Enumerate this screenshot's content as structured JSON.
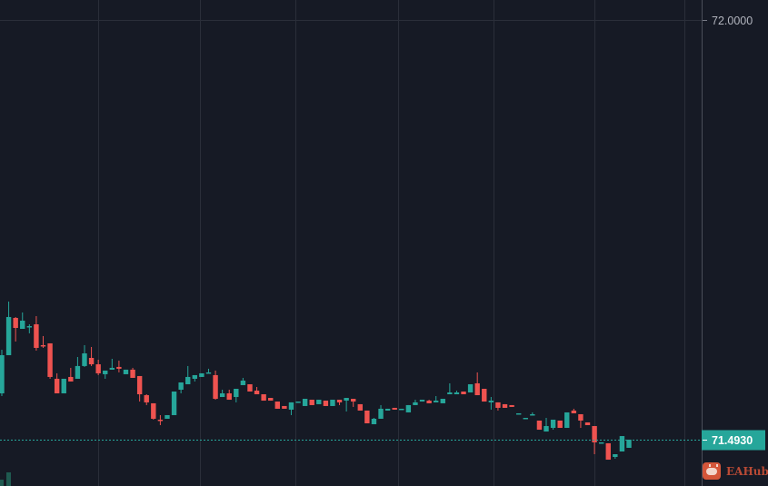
{
  "chart_data": {
    "type": "candlestick",
    "title": "",
    "xlabel": "",
    "ylabel": "",
    "ylim": [
      71.437,
      72.024
    ],
    "y_ticks": [
      "72.0000"
    ],
    "y_tick_values": [
      72.0
    ],
    "last_price": 71.493,
    "last_price_label": "71.4930",
    "grid": true,
    "colors": {
      "up": "#26a69a",
      "down": "#ef5350",
      "background": "#161a25",
      "grid": "#2a2e39",
      "last_price_line": "#26a69a"
    },
    "ohlc": [
      [
        71.5489,
        71.6016,
        71.5456,
        71.595
      ],
      [
        71.595,
        71.6598,
        71.595,
        71.6411
      ],
      [
        71.64,
        71.6411,
        71.6115,
        71.6279
      ],
      [
        71.6268,
        71.6466,
        71.6268,
        71.6367
      ],
      [
        71.629,
        71.6323,
        71.6214,
        71.6301
      ],
      [
        71.6323,
        71.6422,
        71.6005,
        71.6038
      ],
      [
        71.6071,
        71.6181,
        71.6038,
        71.606
      ],
      [
        71.6093,
        71.6093,
        71.5665,
        71.5687
      ],
      [
        71.5665,
        71.5731,
        71.5489,
        71.5489
      ],
      [
        71.5489,
        71.5665,
        71.5489,
        71.5665
      ],
      [
        71.5687,
        71.5797,
        71.5632,
        71.5632
      ],
      [
        71.5665,
        71.5928,
        71.5665,
        71.5819
      ],
      [
        71.5819,
        71.6071,
        71.5808,
        71.5972
      ],
      [
        71.5917,
        71.6049,
        71.5819,
        71.584
      ],
      [
        71.584,
        71.5895,
        71.5709,
        71.5731
      ],
      [
        71.572,
        71.5764,
        71.5665,
        71.5764
      ],
      [
        71.5775,
        71.5906,
        71.5775,
        71.5797
      ],
      [
        71.5808,
        71.5884,
        71.5742,
        71.5786
      ],
      [
        71.572,
        71.5775,
        71.572,
        71.5775
      ],
      [
        71.5775,
        71.5797,
        71.5676,
        71.5676
      ],
      [
        71.5698,
        71.5698,
        71.539,
        71.5478
      ],
      [
        71.5467,
        71.5478,
        71.5347,
        71.538
      ],
      [
        71.5369,
        71.5369,
        71.5171,
        71.5182
      ],
      [
        71.5171,
        71.5226,
        71.5105,
        71.516
      ],
      [
        71.5182,
        71.5226,
        71.5182,
        71.5226
      ],
      [
        71.5226,
        71.5511,
        71.5226,
        71.5511
      ],
      [
        71.5533,
        71.5621,
        71.5489,
        71.5621
      ],
      [
        71.5599,
        71.5819,
        71.5599,
        71.5687
      ],
      [
        71.5665,
        71.5709,
        71.5632,
        71.5709
      ],
      [
        71.5687,
        71.5731,
        71.5687,
        71.5731
      ],
      [
        71.5731,
        71.5786,
        71.5731,
        71.5742
      ],
      [
        71.5709,
        71.5764,
        71.5412,
        71.5423
      ],
      [
        71.5445,
        71.5533,
        71.5445,
        71.5489
      ],
      [
        71.5489,
        71.5533,
        71.5412,
        71.5412
      ],
      [
        71.5445,
        71.5544,
        71.538,
        71.5544
      ],
      [
        71.5588,
        71.5676,
        71.5588,
        71.5643
      ],
      [
        71.5599,
        71.5599,
        71.5511,
        71.5511
      ],
      [
        71.5522,
        71.5566,
        71.5478,
        71.5478
      ],
      [
        71.5478,
        71.5478,
        71.5401,
        71.5401
      ],
      [
        71.5434,
        71.5434,
        71.5401,
        71.5401
      ],
      [
        71.539,
        71.539,
        71.5303,
        71.5303
      ],
      [
        71.5336,
        71.5336,
        71.5303,
        71.5303
      ],
      [
        71.5292,
        71.538,
        71.5226,
        71.538
      ],
      [
        71.538,
        71.539,
        71.538,
        71.539
      ],
      [
        71.5336,
        71.5423,
        71.5336,
        71.5423
      ],
      [
        71.5412,
        71.5412,
        71.5347,
        71.5347
      ],
      [
        71.5358,
        71.5412,
        71.5358,
        71.5412
      ],
      [
        71.5401,
        71.5401,
        71.5336,
        71.5336
      ],
      [
        71.5336,
        71.5412,
        71.5336,
        71.5412
      ],
      [
        71.5412,
        71.5412,
        71.5347,
        71.538
      ],
      [
        71.5401,
        71.5434,
        71.527,
        71.5434
      ],
      [
        71.5423,
        71.5423,
        71.5325,
        71.539
      ],
      [
        71.5358,
        71.5358,
        71.5281,
        71.5281
      ],
      [
        71.5281,
        71.5281,
        71.5127,
        71.5127
      ],
      [
        71.5116,
        71.5193,
        71.5116,
        71.5182
      ],
      [
        71.5182,
        71.5347,
        71.5182,
        71.5303
      ],
      [
        71.5281,
        71.5303,
        71.5281,
        71.5303
      ],
      [
        71.5314,
        71.5314,
        71.5292,
        71.5292
      ],
      [
        71.5292,
        71.5303,
        71.5292,
        71.5303
      ],
      [
        71.5259,
        71.5347,
        71.5259,
        71.5347
      ],
      [
        71.5347,
        71.5412,
        71.5347,
        71.538
      ],
      [
        71.539,
        71.5412,
        71.539,
        71.5412
      ],
      [
        71.5401,
        71.5412,
        71.5369,
        71.5369
      ],
      [
        71.538,
        71.5456,
        71.538,
        71.5401
      ],
      [
        71.5369,
        71.5423,
        71.5369,
        71.5423
      ],
      [
        71.5478,
        71.561,
        71.5478,
        71.55
      ],
      [
        71.5478,
        71.5522,
        71.5478,
        71.55
      ],
      [
        71.5511,
        71.5511,
        71.5478,
        71.5478
      ],
      [
        71.55,
        71.5599,
        71.55,
        71.5599
      ],
      [
        71.561,
        71.5742,
        71.5467,
        71.5467
      ],
      [
        71.5544,
        71.5544,
        71.539,
        71.539
      ],
      [
        71.538,
        71.5445,
        71.5292,
        71.5401
      ],
      [
        71.538,
        71.538,
        71.5281,
        71.5314
      ],
      [
        71.5358,
        71.5358,
        71.5314,
        71.5314
      ],
      [
        71.5347,
        71.5347,
        71.5325,
        71.5325
      ],
      [
        71.5237,
        71.5248,
        71.5237,
        71.5248
      ],
      [
        71.5182,
        71.5193,
        71.5182,
        71.5193
      ],
      [
        71.5226,
        71.5259,
        71.5226,
        71.5237
      ],
      [
        71.516,
        71.516,
        71.505,
        71.505
      ],
      [
        71.5028,
        71.5193,
        71.5028,
        71.5094
      ],
      [
        71.5072,
        71.5171,
        71.505,
        71.5171
      ],
      [
        71.516,
        71.516,
        71.5072,
        71.5072
      ],
      [
        71.5072,
        71.5259,
        71.5072,
        71.5259
      ],
      [
        71.5281,
        71.5303,
        71.5248,
        71.5248
      ],
      [
        71.5237,
        71.5237,
        71.5072,
        71.516
      ],
      [
        71.5138,
        71.5138,
        71.5105,
        71.5105
      ],
      [
        71.5094,
        71.5094,
        71.4754,
        71.4897
      ],
      [
        71.4886,
        71.4897,
        71.4886,
        71.4897
      ],
      [
        71.4886,
        71.4886,
        71.4688,
        71.4688
      ],
      [
        71.4721,
        71.4754,
        71.4699,
        71.4754
      ],
      [
        71.4787,
        71.4973,
        71.4787,
        71.4973
      ],
      [
        71.4831,
        71.493,
        71.4831,
        71.493
      ]
    ]
  },
  "watermark": {
    "logo_text": "EAHub"
  }
}
